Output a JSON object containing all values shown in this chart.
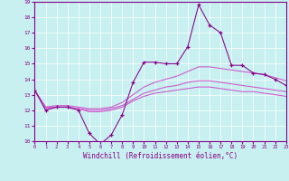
{
  "title": "",
  "xlabel": "Windchill (Refroidissement éolien,°C)",
  "ylabel": "",
  "x": [
    0,
    1,
    2,
    3,
    4,
    5,
    6,
    7,
    8,
    9,
    10,
    11,
    12,
    13,
    14,
    15,
    16,
    17,
    18,
    19,
    20,
    21,
    22,
    23
  ],
  "line1": [
    13.3,
    12.0,
    12.2,
    12.2,
    12.0,
    10.5,
    9.8,
    10.4,
    11.7,
    13.8,
    15.1,
    15.1,
    15.0,
    15.0,
    16.1,
    18.8,
    17.5,
    17.0,
    14.9,
    14.9,
    14.4,
    14.3,
    14.0,
    13.6
  ],
  "line2": [
    13.3,
    12.2,
    12.3,
    12.3,
    12.2,
    12.1,
    12.1,
    12.2,
    12.5,
    13.0,
    13.5,
    13.8,
    14.0,
    14.2,
    14.5,
    14.8,
    14.8,
    14.7,
    14.6,
    14.5,
    14.4,
    14.3,
    14.1,
    13.9
  ],
  "line3": [
    13.3,
    12.2,
    12.2,
    12.2,
    12.1,
    12.0,
    12.0,
    12.1,
    12.3,
    12.7,
    13.1,
    13.3,
    13.5,
    13.6,
    13.8,
    13.9,
    13.9,
    13.8,
    13.7,
    13.6,
    13.5,
    13.4,
    13.3,
    13.2
  ],
  "line4": [
    13.3,
    12.1,
    12.2,
    12.2,
    12.1,
    11.9,
    11.9,
    12.0,
    12.2,
    12.6,
    12.9,
    13.1,
    13.2,
    13.3,
    13.4,
    13.5,
    13.5,
    13.4,
    13.3,
    13.2,
    13.2,
    13.1,
    13.0,
    12.9
  ],
  "line_color": "#880088",
  "smooth_color": "#cc55cc",
  "bg_color": "#c8f0f0",
  "grid_color": "#ffffff",
  "ylim_min": 10,
  "ylim_max": 19,
  "xlim_min": 0,
  "xlim_max": 23
}
